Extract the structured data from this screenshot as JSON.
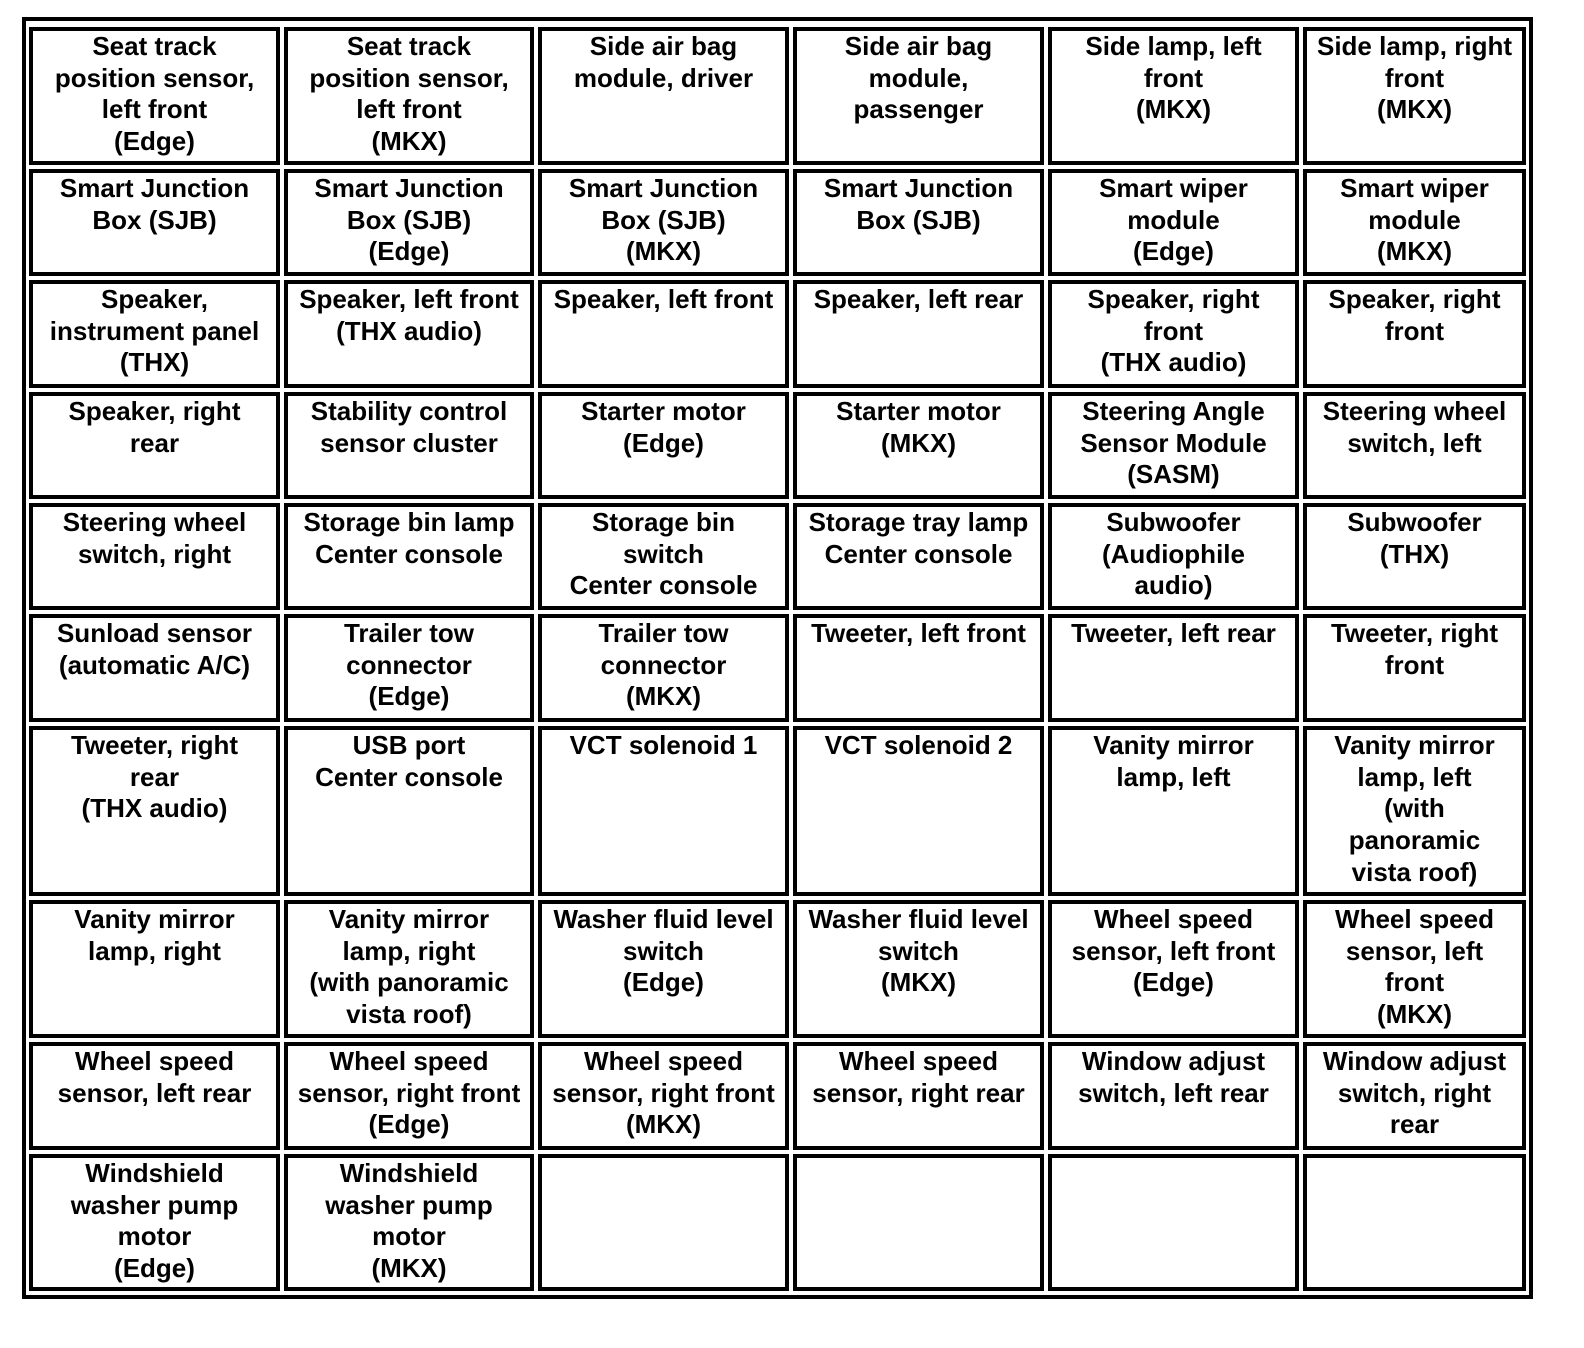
{
  "table": {
    "rows": [
      [
        "Seat track\nposition sensor,\nleft front\n(Edge)",
        "Seat track\nposition sensor,\nleft front\n(MKX)",
        "Side air bag\nmodule, driver",
        "Side air bag\nmodule,\npassenger",
        "Side lamp, left\nfront\n(MKX)",
        "Side lamp, right\nfront\n(MKX)"
      ],
      [
        "Smart Junction\nBox (SJB)",
        "Smart Junction\nBox (SJB)\n(Edge)",
        "Smart Junction\nBox (SJB)\n(MKX)",
        "Smart Junction\nBox (SJB)",
        "Smart wiper\nmodule\n(Edge)",
        "Smart wiper\nmodule\n(MKX)"
      ],
      [
        "Speaker,\ninstrument panel\n(THX)",
        "Speaker, left front\n(THX audio)",
        "Speaker, left front",
        "Speaker, left rear",
        "Speaker, right\nfront\n(THX audio)",
        "Speaker, right\nfront"
      ],
      [
        "Speaker, right\nrear",
        "Stability control\nsensor cluster",
        "Starter motor\n(Edge)",
        "Starter motor\n(MKX)",
        "Steering Angle\nSensor Module\n(SASM)",
        "Steering wheel\nswitch, left"
      ],
      [
        "Steering wheel\nswitch, right",
        "Storage bin lamp\nCenter console",
        "Storage bin\nswitch\nCenter console",
        "Storage tray lamp\nCenter console",
        "Subwoofer\n(Audiophile\naudio)",
        "Subwoofer\n(THX)"
      ],
      [
        "Sunload sensor\n(automatic A/C)",
        "Trailer tow\nconnector\n(Edge)",
        "Trailer tow\nconnector\n(MKX)",
        "Tweeter, left front",
        "Tweeter, left rear",
        "Tweeter, right\nfront"
      ],
      [
        "Tweeter, right\nrear\n(THX audio)",
        "USB port\nCenter console",
        "VCT solenoid 1",
        "VCT solenoid 2",
        "Vanity mirror\nlamp, left",
        "Vanity mirror\nlamp, left\n(with\npanoramic\nvista roof)"
      ],
      [
        "Vanity mirror\nlamp, right",
        "Vanity mirror\nlamp, right\n(with panoramic\nvista roof)",
        "Washer fluid level\nswitch\n(Edge)",
        "Washer fluid level\nswitch\n(MKX)",
        "Wheel speed\nsensor, left front\n(Edge)",
        "Wheel speed\nsensor, left\nfront\n(MKX)"
      ],
      [
        "Wheel speed\nsensor, left rear",
        "Wheel speed\nsensor, right front\n(Edge)",
        "Wheel speed\nsensor, right front\n(MKX)",
        "Wheel speed\nsensor, right rear",
        "Window adjust\nswitch, left rear",
        "Window adjust\nswitch, right\nrear"
      ],
      [
        "Windshield\nwasher pump\nmotor\n(Edge)",
        "Windshield\nwasher pump\nmotor\n(MKX)",
        "",
        "",
        "",
        ""
      ]
    ]
  }
}
